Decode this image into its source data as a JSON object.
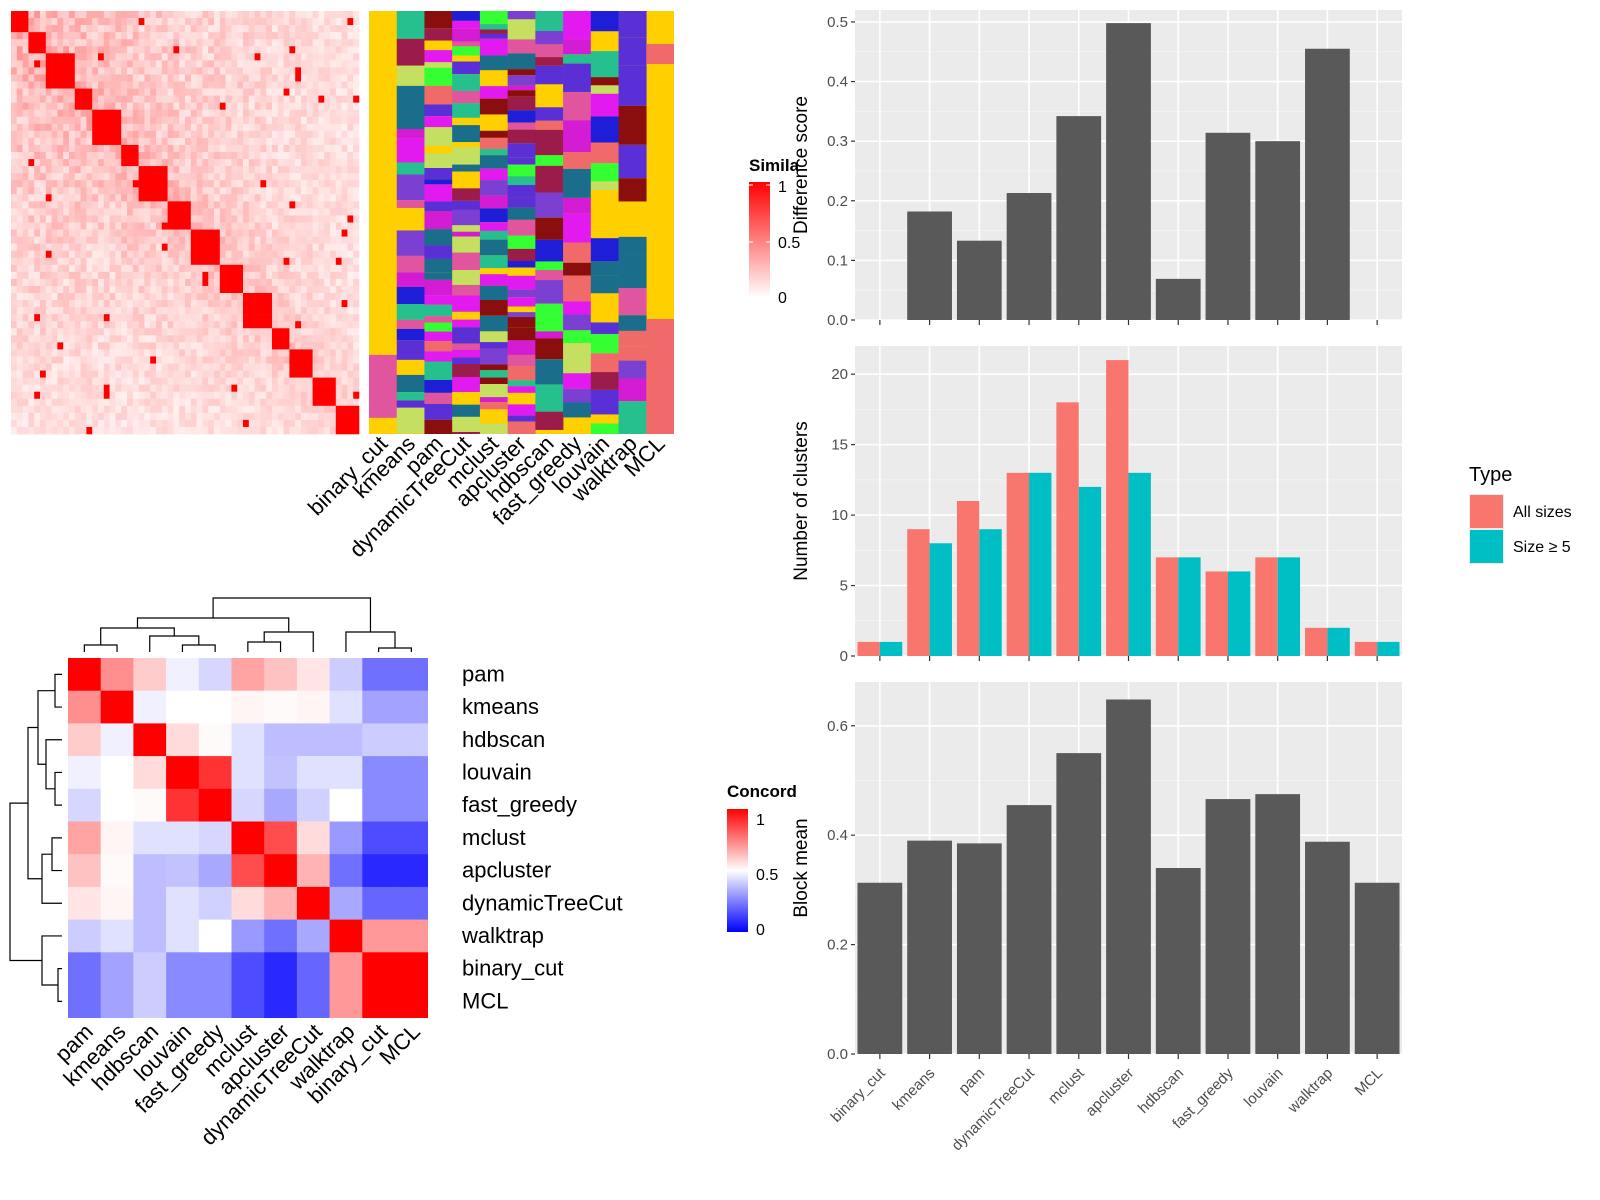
{
  "methods_order": [
    "binary_cut",
    "kmeans",
    "pam",
    "dynamicTreeCut",
    "mclust",
    "apcluster",
    "hdbscan",
    "fast_greedy",
    "louvain",
    "walktrap",
    "MCL"
  ],
  "colors": {
    "panel_bg": "#EBEBEB",
    "grid": "#FFFFFF",
    "bar_gray": "#595959",
    "all_sizes": "#F8766D",
    "size_ge5": "#00BFC4",
    "heat_high": "#FF0000",
    "heat_low": "#0000FF",
    "membership_bg": "#FFD000"
  },
  "chart_data": [
    {
      "type": "heatmap",
      "panel": "similarity_matrix",
      "legend": {
        "title": "Simila",
        "ticks": [
          "1",
          "0.5",
          "0"
        ]
      },
      "description": "Term similarity matrix with strong red diagonal blocks on white-to-pink background"
    },
    {
      "type": "heatmap",
      "panel": "cluster_membership",
      "columns": [
        "binary_cut",
        "kmeans",
        "pam",
        "dynamicTreeCut",
        "mclust",
        "apcluster",
        "hdbscan",
        "fast_greedy",
        "louvain",
        "walktrap",
        "MCL"
      ]
    },
    {
      "type": "bar",
      "panel": "difference_score",
      "categories": [
        "binary_cut",
        "kmeans",
        "pam",
        "dynamicTreeCut",
        "mclust",
        "apcluster",
        "hdbscan",
        "fast_greedy",
        "louvain",
        "walktrap",
        "MCL"
      ],
      "values": [
        0.0,
        0.182,
        0.133,
        0.213,
        0.342,
        0.498,
        0.069,
        0.314,
        0.3,
        0.455,
        0.0
      ],
      "ylabel": "Difference score",
      "ylim": [
        0,
        0.52
      ],
      "yticks": [
        "0.0",
        "0.1",
        "0.2",
        "0.3",
        "0.4",
        "0.5"
      ],
      "grid": true
    },
    {
      "type": "bar",
      "panel": "number_of_clusters",
      "categories": [
        "binary_cut",
        "kmeans",
        "pam",
        "dynamicTreeCut",
        "mclust",
        "apcluster",
        "hdbscan",
        "fast_greedy",
        "louvain",
        "walktrap",
        "MCL"
      ],
      "series": [
        {
          "name": "All sizes",
          "values": [
            1,
            9,
            11,
            13,
            18,
            21,
            7,
            6,
            7,
            2,
            1
          ]
        },
        {
          "name": "Size ≥ 5",
          "values": [
            1,
            8,
            9,
            13,
            12,
            13,
            7,
            6,
            7,
            2,
            1
          ]
        }
      ],
      "ylabel": "Number of clusters",
      "ylim": [
        0,
        22
      ],
      "yticks": [
        "0",
        "5",
        "10",
        "15",
        "20"
      ],
      "legend": {
        "title": "Type",
        "placement": "right"
      },
      "grid": true
    },
    {
      "type": "bar",
      "panel": "block_mean",
      "categories": [
        "binary_cut",
        "kmeans",
        "pam",
        "dynamicTreeCut",
        "mclust",
        "apcluster",
        "hdbscan",
        "fast_greedy",
        "louvain",
        "walktrap",
        "MCL"
      ],
      "values": [
        0.313,
        0.39,
        0.385,
        0.455,
        0.55,
        0.648,
        0.34,
        0.466,
        0.475,
        0.388,
        0.313
      ],
      "ylabel": "Block mean",
      "ylim": [
        0,
        0.68
      ],
      "yticks": [
        "0.0",
        "0.2",
        "0.4",
        "0.6"
      ],
      "grid": true
    },
    {
      "type": "heatmap",
      "panel": "concordance",
      "rows": [
        "pam",
        "kmeans",
        "hdbscan",
        "louvain",
        "fast_greedy",
        "mclust",
        "apcluster",
        "dynamicTreeCut",
        "walktrap",
        "binary_cut",
        "MCL"
      ],
      "columns": [
        "pam",
        "kmeans",
        "hdbscan",
        "louvain",
        "fast_greedy",
        "mclust",
        "apcluster",
        "dynamicTreeCut",
        "walktrap",
        "binary_cut",
        "MCL"
      ],
      "values": [
        [
          1.0,
          0.72,
          0.6,
          0.47,
          0.42,
          0.68,
          0.62,
          0.55,
          0.4,
          0.22,
          0.22
        ],
        [
          0.72,
          1.0,
          0.47,
          0.5,
          0.5,
          0.52,
          0.51,
          0.52,
          0.44,
          0.32,
          0.32
        ],
        [
          0.6,
          0.47,
          1.0,
          0.57,
          0.51,
          0.44,
          0.37,
          0.37,
          0.37,
          0.4,
          0.4
        ],
        [
          0.47,
          0.5,
          0.57,
          1.0,
          0.9,
          0.44,
          0.38,
          0.44,
          0.44,
          0.27,
          0.27
        ],
        [
          0.42,
          0.5,
          0.51,
          0.9,
          1.0,
          0.42,
          0.33,
          0.41,
          0.5,
          0.27,
          0.27
        ],
        [
          0.68,
          0.52,
          0.44,
          0.44,
          0.42,
          1.0,
          0.85,
          0.57,
          0.3,
          0.15,
          0.15
        ],
        [
          0.62,
          0.51,
          0.37,
          0.38,
          0.33,
          0.85,
          1.0,
          0.65,
          0.22,
          0.08,
          0.08
        ],
        [
          0.55,
          0.52,
          0.37,
          0.44,
          0.41,
          0.57,
          0.65,
          1.0,
          0.33,
          0.2,
          0.2
        ],
        [
          0.4,
          0.44,
          0.37,
          0.44,
          0.5,
          0.3,
          0.22,
          0.33,
          1.0,
          0.7,
          0.7
        ],
        [
          0.22,
          0.32,
          0.4,
          0.27,
          0.27,
          0.15,
          0.08,
          0.2,
          0.7,
          1.0,
          1.0
        ],
        [
          0.22,
          0.32,
          0.4,
          0.27,
          0.27,
          0.15,
          0.08,
          0.2,
          0.7,
          1.0,
          1.0
        ]
      ],
      "legend": {
        "title": "Concord",
        "ticks": [
          "1",
          "0.5",
          "0"
        ]
      }
    }
  ]
}
